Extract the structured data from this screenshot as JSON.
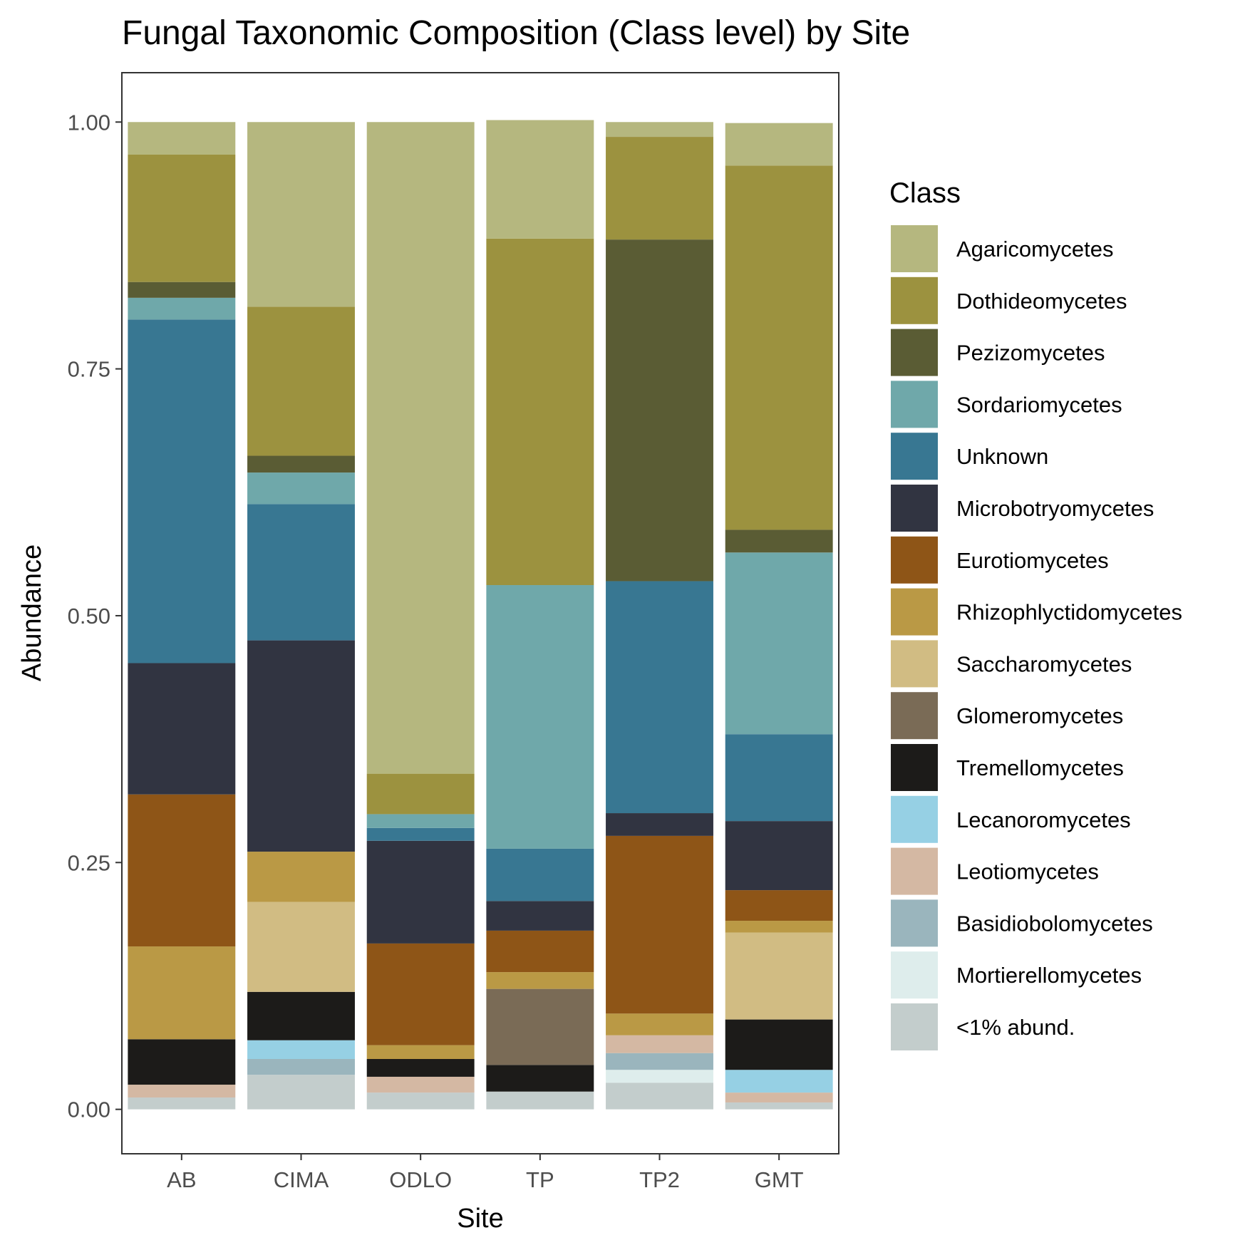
{
  "chart_data": {
    "type": "bar",
    "stacked": true,
    "title": "Fungal Taxonomic Composition (Class level) by Site",
    "xlabel": "Site",
    "ylabel": "Abundance",
    "ylim": [
      -0.045,
      1.05
    ],
    "yticks": [
      "0.00",
      "0.25",
      "0.50",
      "0.75",
      "1.00"
    ],
    "ytick_values": [
      0,
      0.25,
      0.5,
      0.75,
      1.0
    ],
    "grid": false,
    "legend_title": "Class",
    "legend_position": "right",
    "categories": [
      "AB",
      "CIMA",
      "ODLO",
      "TP",
      "TP2",
      "GMT"
    ],
    "series": [
      {
        "name": "Agaricomycetes",
        "color": "#B5B77F",
        "values": [
          0.033,
          0.187,
          0.66,
          0.12,
          0.015,
          0.043
        ]
      },
      {
        "name": "Dothideomycetes",
        "color": "#9C923F",
        "values": [
          0.129,
          0.151,
          0.041,
          0.351,
          0.104,
          0.369
        ]
      },
      {
        "name": "Pezizomycetes",
        "color": "#5A5C34",
        "values": [
          0.016,
          0.017,
          0.0,
          0.0,
          0.346,
          0.023
        ]
      },
      {
        "name": "Sordariomycetes",
        "color": "#6FA8AA",
        "values": [
          0.022,
          0.032,
          0.014,
          0.267,
          0.0,
          0.184
        ]
      },
      {
        "name": "Unknown",
        "color": "#387792",
        "values": [
          0.348,
          0.138,
          0.013,
          0.053,
          0.235,
          0.088
        ]
      },
      {
        "name": "Microbotryomycetes",
        "color": "#313441",
        "values": [
          0.133,
          0.214,
          0.104,
          0.03,
          0.023,
          0.07
        ]
      },
      {
        "name": "Eurotiomycetes",
        "color": "#8E5517",
        "values": [
          0.154,
          0.0,
          0.103,
          0.042,
          0.18,
          0.031
        ]
      },
      {
        "name": "Rhizophlyctidomycetes",
        "color": "#BA9945",
        "values": [
          0.094,
          0.051,
          0.014,
          0.017,
          0.022,
          0.012
        ]
      },
      {
        "name": "Saccharomycetes",
        "color": "#D1BC83",
        "values": [
          0.0,
          0.091,
          0.0,
          0.0,
          0.0,
          0.088
        ]
      },
      {
        "name": "Glomeromycetes",
        "color": "#7A6B56",
        "values": [
          0.0,
          0.0,
          0.0,
          0.077,
          0.0,
          0.0
        ]
      },
      {
        "name": "Tremellomycetes",
        "color": "#1C1B19",
        "values": [
          0.046,
          0.049,
          0.018,
          0.027,
          0.0,
          0.051
        ]
      },
      {
        "name": "Lecanoromycetes",
        "color": "#96D0E4",
        "values": [
          0.0,
          0.019,
          0.0,
          0.0,
          0.0,
          0.023
        ]
      },
      {
        "name": "Leotiomycetes",
        "color": "#D4B8A3",
        "values": [
          0.013,
          0.0,
          0.016,
          0.0,
          0.018,
          0.01
        ]
      },
      {
        "name": "Basidiobolomycetes",
        "color": "#9AB5BD",
        "values": [
          0.0,
          0.016,
          0.0,
          0.0,
          0.017,
          0.0
        ]
      },
      {
        "name": "Mortierellomycetes",
        "color": "#DEEDEC",
        "values": [
          0.0,
          0.0,
          0.0,
          0.0,
          0.013,
          0.0
        ]
      },
      {
        "name": "<1% abund.",
        "color": "#C3CDCC",
        "values": [
          0.012,
          0.035,
          0.017,
          0.018,
          0.027,
          0.007
        ]
      }
    ]
  }
}
